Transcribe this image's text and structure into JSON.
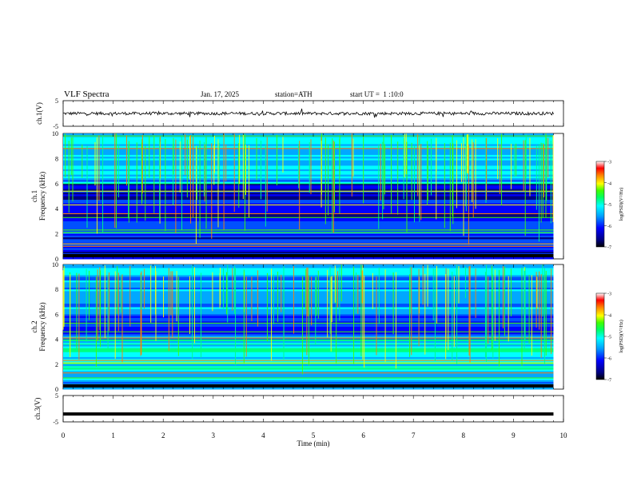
{
  "header": {
    "title": "VLF Spectra",
    "date": "Jan. 17, 2025",
    "station": "station=ATH",
    "start": "start UT =  1 :10:0"
  },
  "colors": {
    "spectrogram_scale": [
      "#000000",
      "#00007f",
      "#0000ff",
      "#0050ff",
      "#00a8ff",
      "#00ffff",
      "#00ff80",
      "#40ff00",
      "#ffff00",
      "#ff8000",
      "#ff0000",
      "#ffffff"
    ],
    "trace": "#000000"
  },
  "chart_data": [
    {
      "type": "line",
      "name": "ch1-waveform",
      "ylabel": "ch.1(V)",
      "ylim": [
        -5,
        5
      ],
      "yticks": [
        "5",
        "-5"
      ],
      "xlim": [
        0,
        10
      ],
      "baseline": 0,
      "noise_amplitude": 1
    },
    {
      "type": "heatmap",
      "name": "ch1-spectrogram",
      "ylabel": "ch.1\nFrequency (kHz)",
      "ylim": [
        0,
        10
      ],
      "yticks": [
        "10",
        "8",
        "6",
        "4",
        "2",
        "0"
      ],
      "xlim": [
        0,
        10
      ],
      "colorbar": {
        "label": "log(PSD)(V²/Hz)",
        "ticks": [
          "-3",
          "-4",
          "-5",
          "-6",
          "-7"
        ],
        "range": [
          -7,
          -3
        ]
      }
    },
    {
      "type": "heatmap",
      "name": "ch2-spectrogram",
      "ylabel": "ch.2\nFrequency (kHz)",
      "ylim": [
        0,
        10
      ],
      "yticks": [
        "10",
        "8",
        "6",
        "4",
        "2",
        "0"
      ],
      "xlim": [
        0,
        10
      ],
      "colorbar": {
        "label": "log(PSD)(V²/Hz)",
        "ticks": [
          "-3",
          "-4",
          "-5",
          "-6",
          "-7"
        ],
        "range": [
          -7,
          -3
        ]
      }
    },
    {
      "type": "line",
      "name": "ch3-waveform",
      "ylabel": "ch.3(V)",
      "ylim": [
        -5,
        5
      ],
      "yticks": [
        "5",
        "-5"
      ],
      "xlim": [
        0,
        10
      ],
      "baseline": -2
    }
  ],
  "xaxis": {
    "label": "Time (min)",
    "ticks": [
      "0",
      "1",
      "2",
      "3",
      "4",
      "5",
      "6",
      "7",
      "8",
      "9",
      "10"
    ]
  }
}
